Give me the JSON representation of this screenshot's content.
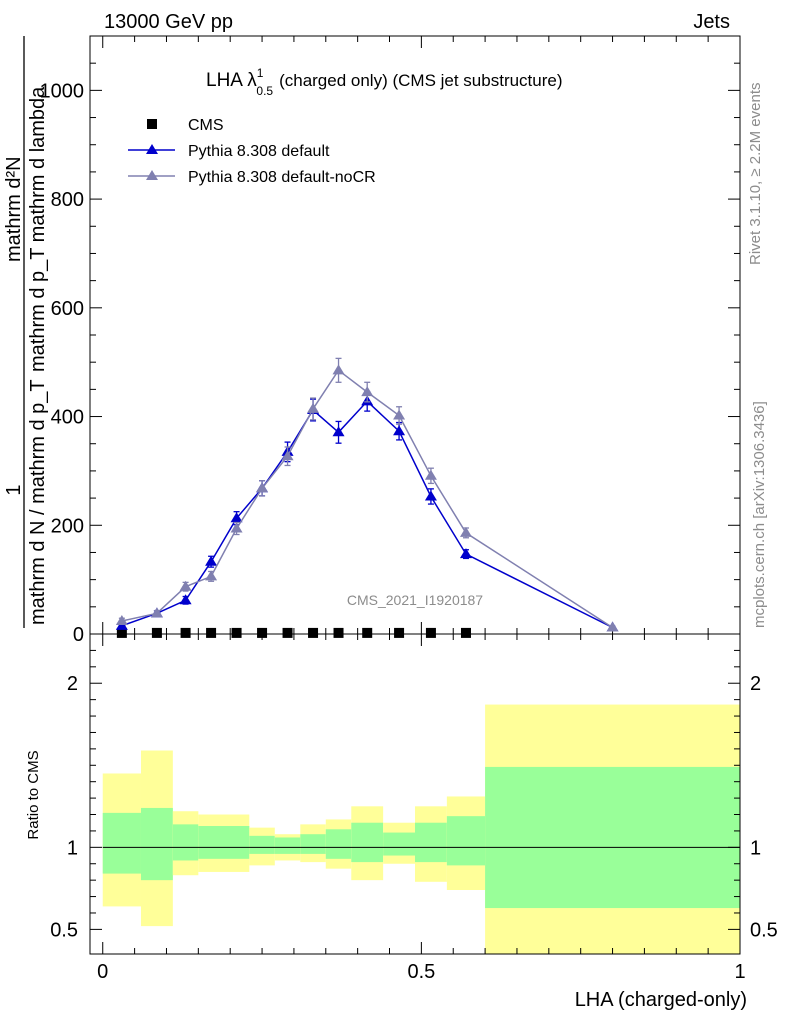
{
  "header": {
    "left": "13000 GeV pp",
    "right": "Jets"
  },
  "side_texts": {
    "rivet": "Rivet 3.1.10, ≥ 2.2M events",
    "mcplots": "mcplots.cern.ch [arXiv:1306.3436]"
  },
  "watermark": "CMS_2021_I1920187",
  "chart_data": [
    {
      "type": "line",
      "title": "LHA λ^1_0.5 (charged only) (CMS jet substructure)",
      "title_main": "LHA λ",
      "title_sup": "1",
      "title_sub": "0.5",
      "title_rest": "(charged only) (CMS jet substructure)",
      "ylabel_numerator": "mathrm d²N",
      "ylabel_denominator": "mathrm d p_T mathrm d lambda",
      "ylabel_factor_num": "1",
      "ylabel_factor_den": "mathrm d N / mathrm d p_T",
      "ylabel_tail": "mathrm d p_T mathrm d lambda",
      "xlim": [
        0,
        1
      ],
      "ylim": [
        0,
        1100
      ],
      "yticks": [
        0,
        200,
        400,
        600,
        800,
        1000
      ],
      "ytick_labels": [
        "0",
        "200",
        "400",
        "600",
        "800",
        "1000"
      ],
      "legend_position": "top-left",
      "series": [
        {
          "name": "CMS",
          "color": "#000000",
          "marker": "square",
          "x": [
            0.03,
            0.085,
            0.13,
            0.17,
            0.21,
            0.25,
            0.29,
            0.33,
            0.37,
            0.415,
            0.465,
            0.515,
            0.57
          ],
          "y": [
            2,
            2,
            2,
            2,
            2,
            2,
            2,
            2,
            2,
            2,
            2,
            2,
            2
          ]
        },
        {
          "name": "Pythia 8.308 default",
          "color": "#0000cc",
          "marker": "triangle",
          "x": [
            0.03,
            0.085,
            0.13,
            0.17,
            0.21,
            0.25,
            0.29,
            0.33,
            0.37,
            0.415,
            0.465,
            0.515,
            0.57,
            0.8
          ],
          "y": [
            15,
            38,
            62,
            133,
            213,
            268,
            335,
            412,
            371,
            428,
            373,
            253,
            147,
            12
          ],
          "err": [
            5,
            5,
            7,
            10,
            12,
            14,
            18,
            20,
            20,
            18,
            16,
            14,
            8,
            2
          ]
        },
        {
          "name": "Pythia 8.308 default-noCR",
          "color": "#8080b0",
          "marker": "triangle",
          "x": [
            0.03,
            0.085,
            0.13,
            0.17,
            0.21,
            0.25,
            0.29,
            0.33,
            0.37,
            0.415,
            0.465,
            0.515,
            0.57,
            0.8
          ],
          "y": [
            24,
            38,
            87,
            106,
            194,
            268,
            327,
            414,
            485,
            445,
            402,
            291,
            186,
            12
          ],
          "err": [
            5,
            5,
            8,
            9,
            11,
            14,
            17,
            20,
            22,
            18,
            16,
            14,
            9,
            2
          ]
        }
      ]
    },
    {
      "type": "area",
      "ylabel": "Ratio to CMS",
      "xlabel": "LHA (charged-only)",
      "xlim": [
        -0.02,
        1.0
      ],
      "ylim": [
        0.35,
        2.3
      ],
      "xticks": [
        0,
        0.5,
        1
      ],
      "xtick_labels": [
        "0",
        "0.5",
        "1"
      ],
      "yticks": [
        0.5,
        1,
        2
      ],
      "ytick_labels": [
        "0.5",
        "1",
        "2"
      ],
      "reference_line": 1,
      "bands": {
        "edges": [
          0.0,
          0.06,
          0.11,
          0.15,
          0.23,
          0.27,
          0.31,
          0.35,
          0.39,
          0.44,
          0.49,
          0.54,
          0.6,
          1.0
        ],
        "yellow_low": [
          0.64,
          0.52,
          0.83,
          0.85,
          0.89,
          0.92,
          0.91,
          0.87,
          0.8,
          0.9,
          0.79,
          0.74,
          0.35
        ],
        "yellow_high": [
          1.45,
          1.59,
          1.22,
          1.2,
          1.12,
          1.08,
          1.14,
          1.17,
          1.25,
          1.15,
          1.25,
          1.31,
          1.87
        ],
        "green_low": [
          0.84,
          0.8,
          0.92,
          0.93,
          0.96,
          0.96,
          0.96,
          0.93,
          0.91,
          0.95,
          0.91,
          0.89,
          0.63
        ],
        "green_high": [
          1.21,
          1.24,
          1.14,
          1.13,
          1.07,
          1.06,
          1.08,
          1.11,
          1.15,
          1.09,
          1.15,
          1.19,
          1.49
        ],
        "green_color": "#99ff99",
        "yellow_color": "#ffff99"
      }
    }
  ]
}
